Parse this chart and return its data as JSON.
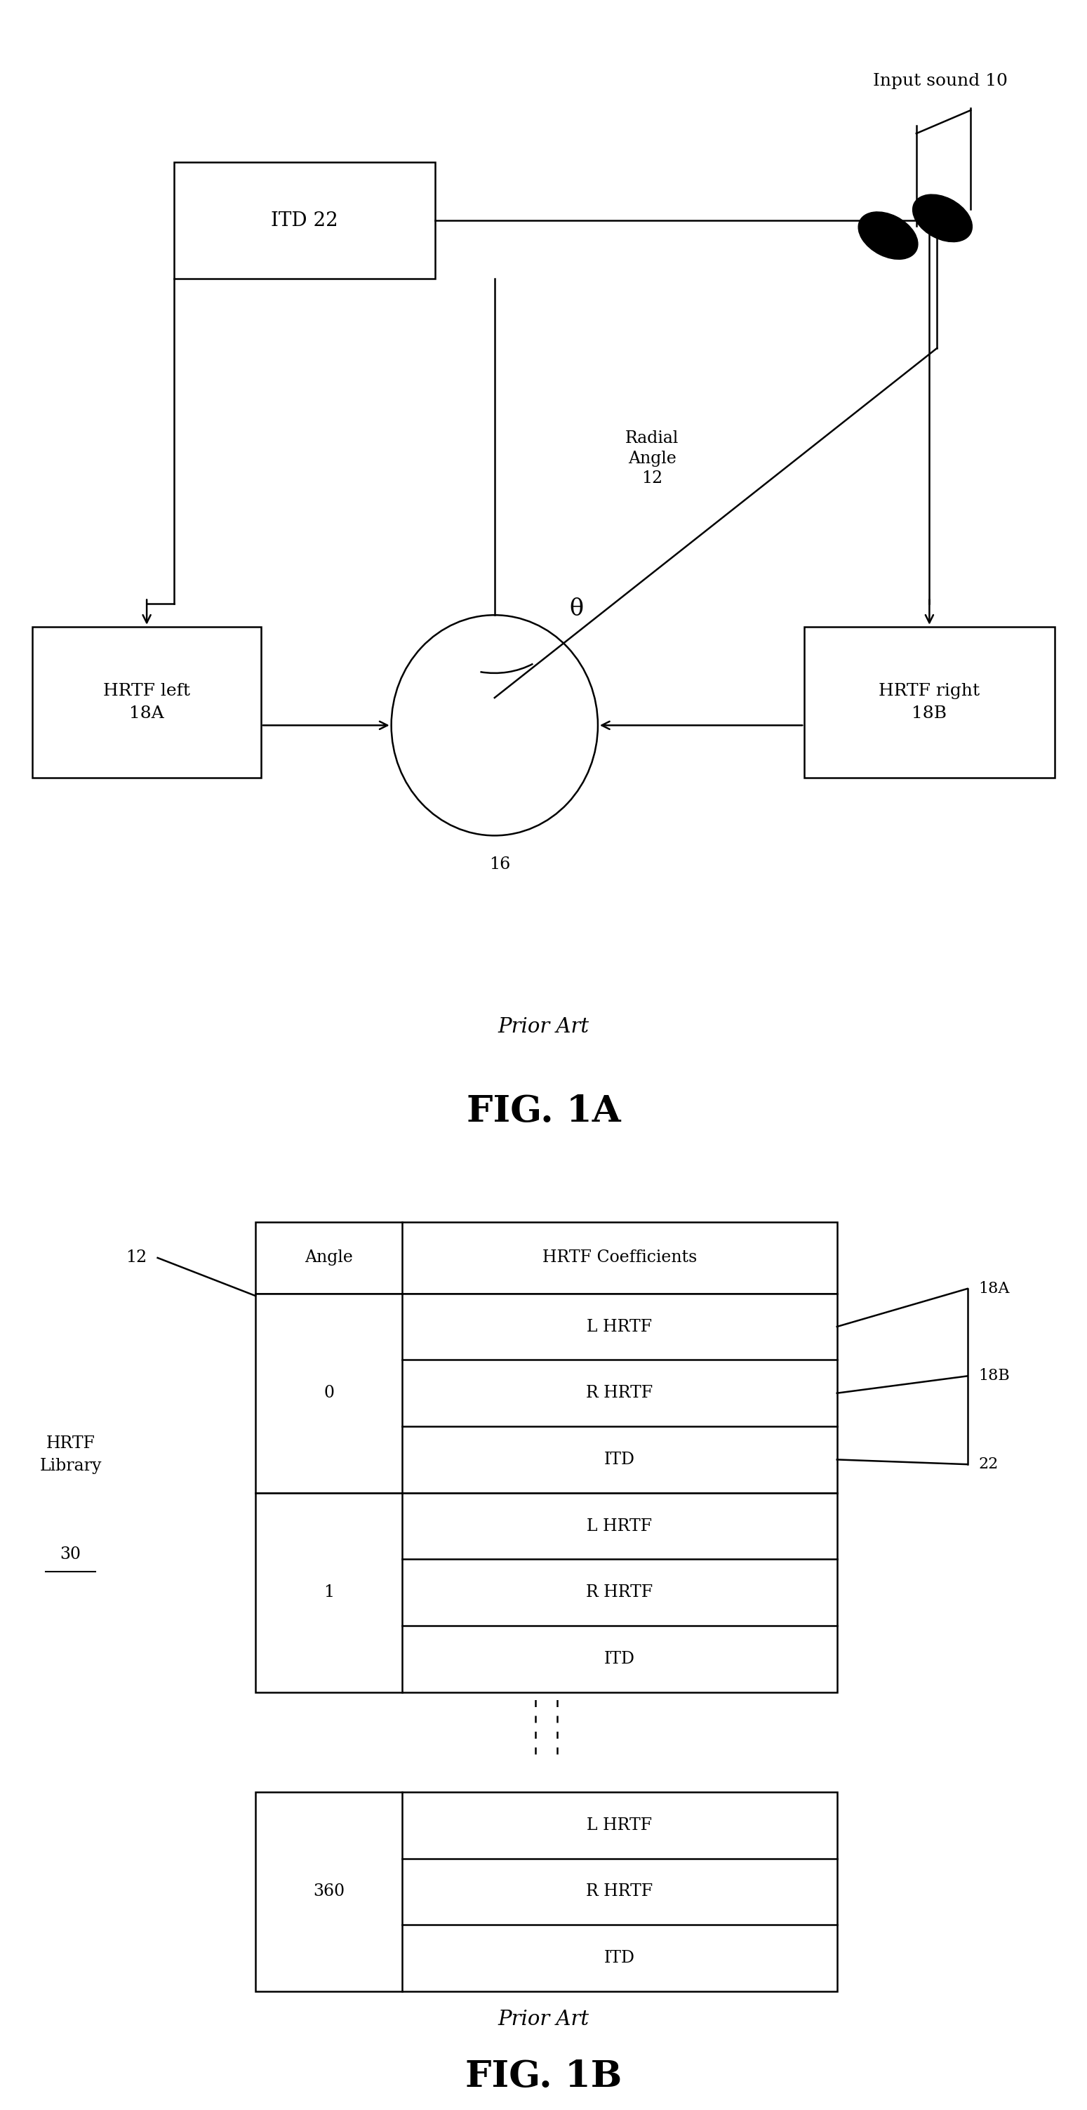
{
  "fig_width": 15.49,
  "fig_height": 30.06,
  "bg_color": "#ffffff",
  "fig1a": {
    "title": "FIG. 1A",
    "subtitle": "Prior Art",
    "itd_label": "ITD 22",
    "hrtf_left_label": "HRTF left\n18A",
    "hrtf_right_label": "HRTF right\n18B",
    "circle_label": "16",
    "input_sound_label": "Input sound 10",
    "radial_angle_label": "Radial\nAngle\n12",
    "theta_label": "θ"
  },
  "fig1b": {
    "title": "FIG. 1B",
    "subtitle": "Prior Art",
    "library_label_top": "HRTF\nLibrary",
    "library_label_num": "30",
    "label_12": "12",
    "label_18A": "18A",
    "label_18B": "18B",
    "label_22": "22",
    "angle_col_header": "Angle",
    "coeff_col_header": "HRTF Coefficients",
    "rows": [
      {
        "angle": "0",
        "data": [
          "L HRTF",
          "R HRTF",
          "ITD"
        ]
      },
      {
        "angle": "1",
        "data": [
          "L HRTF",
          "R HRTF",
          "ITD"
        ]
      }
    ],
    "bottom_rows": {
      "angle": "360",
      "data": [
        "L HRTF",
        "R HRTF",
        "ITD"
      ]
    }
  }
}
